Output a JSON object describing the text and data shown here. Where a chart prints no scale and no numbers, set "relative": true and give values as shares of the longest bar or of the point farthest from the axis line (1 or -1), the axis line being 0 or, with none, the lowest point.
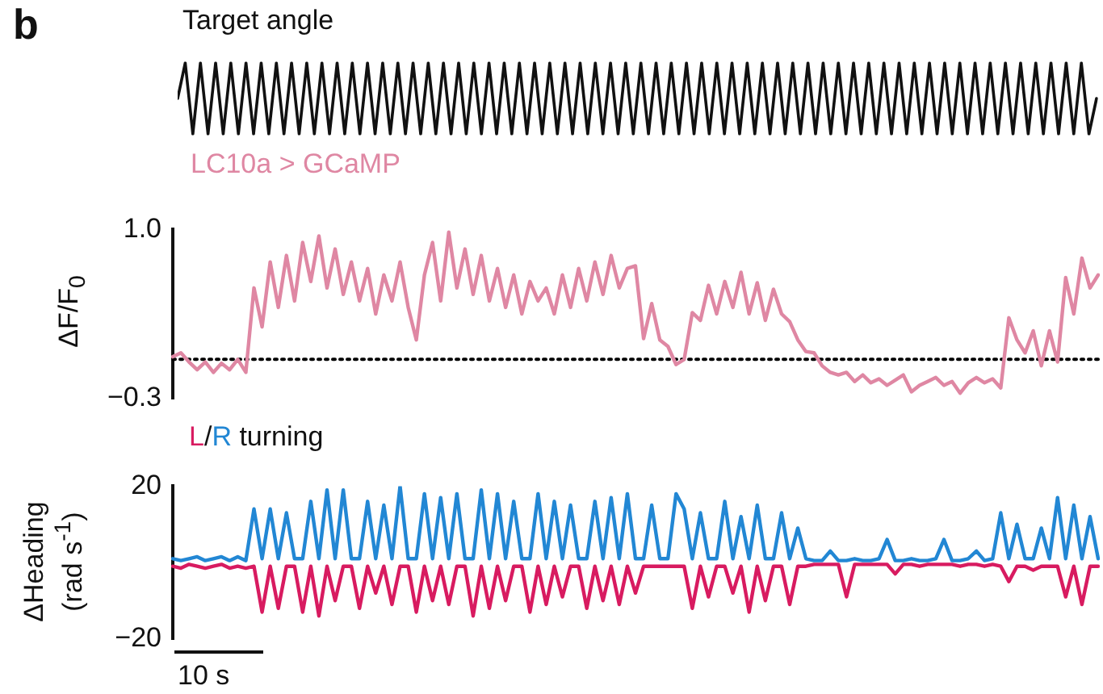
{
  "chart_data": [
    {
      "type": "line",
      "title": "Target angle",
      "annotations": [
        "b"
      ],
      "relative": true,
      "color": "#111111",
      "categories": [
        null,
        null,
        null,
        null,
        null,
        null,
        null,
        null,
        null,
        null,
        null,
        null,
        null,
        null,
        null,
        null,
        null,
        null,
        null,
        null,
        null,
        null,
        null,
        null,
        null,
        null,
        null,
        null,
        null,
        null,
        null,
        null,
        null,
        null,
        null,
        null,
        null,
        null,
        null,
        null,
        null,
        null,
        null,
        null,
        null,
        null,
        null,
        null,
        null,
        null,
        null,
        null,
        null,
        null,
        null,
        null,
        null,
        null,
        null,
        null,
        null,
        null,
        null,
        null,
        null,
        null,
        null,
        null,
        null,
        null,
        null,
        null,
        null,
        null,
        null,
        null,
        null,
        null,
        null,
        null,
        null,
        null,
        null,
        null,
        null,
        null,
        null,
        null,
        null,
        null,
        null,
        null,
        null,
        null,
        null,
        null,
        null,
        null,
        null,
        null,
        null,
        null,
        null,
        null,
        null,
        null,
        null,
        null,
        null,
        null,
        null,
        null,
        null,
        null,
        null,
        null,
        null,
        null,
        null,
        null,
        null,
        null
      ],
      "values": [
        0.5,
        1,
        0,
        1,
        0,
        1,
        0,
        1,
        0,
        1,
        0,
        1,
        0,
        1,
        0,
        1,
        0,
        1,
        0,
        1,
        0,
        1,
        0,
        1,
        0,
        1,
        0,
        1,
        0,
        1,
        0,
        1,
        0,
        1,
        0,
        1,
        0,
        1,
        0,
        1,
        0,
        1,
        0,
        1,
        0,
        1,
        0,
        1,
        0,
        1,
        0,
        1,
        0,
        1,
        0,
        1,
        0,
        1,
        0,
        1,
        0,
        1,
        0,
        1,
        0,
        1,
        0,
        1,
        0,
        1,
        0,
        1,
        0,
        1,
        0,
        1,
        0,
        1,
        0,
        1,
        0,
        1,
        0,
        1,
        0,
        1,
        0,
        1,
        0,
        1,
        0,
        1,
        0,
        1,
        0,
        1,
        0,
        1,
        0,
        1,
        0,
        1,
        0,
        1,
        0,
        1,
        0,
        1,
        0,
        1,
        0,
        1,
        0,
        1,
        0,
        1,
        0,
        1,
        0,
        1,
        0,
        0.5
      ]
    },
    {
      "type": "line",
      "ylabel": "ΔF/F$_{0}$",
      "legend": "top left",
      "ylim": [
        -0.3,
        1.0
      ],
      "yticks": [
        {
          "value": -0.3,
          "label": "−0.3"
        },
        {
          "value": 1.0,
          "label": "1.0"
        }
      ],
      "ref_lines": [
        {
          "axis": "y",
          "value": 0,
          "color": "#000000",
          "line_style": "dotted"
        }
      ],
      "categories": [
        null,
        null,
        null,
        null,
        null,
        null,
        null,
        null,
        null,
        null,
        null,
        null,
        null,
        null,
        null,
        null,
        null,
        null,
        null,
        null,
        null,
        null,
        null,
        null,
        null,
        null,
        null,
        null,
        null,
        null,
        null,
        null,
        null,
        null,
        null,
        null,
        null,
        null,
        null,
        null,
        null,
        null,
        null,
        null,
        null,
        null,
        null,
        null,
        null,
        null,
        null,
        null,
        null,
        null,
        null,
        null,
        null,
        null,
        null,
        null,
        null,
        null,
        null,
        null,
        null,
        null,
        null,
        null,
        null,
        null,
        null,
        null,
        null,
        null,
        null,
        null,
        null,
        null,
        null,
        null,
        null,
        null,
        null,
        null,
        null,
        null,
        null,
        null,
        null,
        null,
        null,
        null,
        null,
        null,
        null,
        null,
        null,
        null,
        null,
        null,
        null,
        null,
        null,
        null,
        null,
        null,
        null,
        null,
        null,
        null,
        null,
        null,
        null,
        null,
        null
      ],
      "series": [
        {
          "name": "LC10a > GCaMP",
          "color": "#df87a3",
          "values": [
            0.02,
            0.05,
            -0.02,
            -0.08,
            -0.02,
            -0.1,
            -0.03,
            -0.08,
            0.0,
            -0.1,
            0.55,
            0.25,
            0.75,
            0.4,
            0.8,
            0.45,
            0.9,
            0.6,
            0.95,
            0.55,
            0.85,
            0.5,
            0.75,
            0.45,
            0.7,
            0.35,
            0.65,
            0.45,
            0.75,
            0.4,
            0.15,
            0.65,
            0.9,
            0.45,
            0.98,
            0.55,
            0.85,
            0.5,
            0.8,
            0.45,
            0.7,
            0.4,
            0.65,
            0.35,
            0.6,
            0.45,
            0.55,
            0.35,
            0.65,
            0.4,
            0.7,
            0.45,
            0.75,
            0.5,
            0.8,
            0.55,
            0.7,
            0.72,
            0.16,
            0.43,
            0.15,
            0.1,
            -0.04,
            0.0,
            0.36,
            0.3,
            0.57,
            0.35,
            0.6,
            0.4,
            0.67,
            0.35,
            0.59,
            0.3,
            0.54,
            0.35,
            0.29,
            0.15,
            0.06,
            0.05,
            -0.05,
            -0.1,
            -0.12,
            -0.1,
            -0.17,
            -0.12,
            -0.18,
            -0.15,
            -0.2,
            -0.16,
            -0.12,
            -0.25,
            -0.2,
            -0.17,
            -0.14,
            -0.2,
            -0.17,
            -0.26,
            -0.18,
            -0.14,
            -0.18,
            -0.15,
            -0.22,
            0.32,
            0.15,
            0.05,
            0.22,
            -0.05,
            0.22,
            -0.02,
            0.63,
            0.35,
            0.78,
            0.55,
            0.65
          ]
        }
      ]
    },
    {
      "type": "line",
      "ylabel": "ΔHeading (rad s$^{-1}$)",
      "legend": "top left",
      "legend_title": "turning",
      "annotations": [
        "/",
        "10 s"
      ],
      "ylim": [
        -20,
        20
      ],
      "yticks": [
        {
          "value": -20,
          "label": "−20"
        },
        20
      ],
      "categories": [
        null,
        null,
        null,
        null,
        null,
        null,
        null,
        null,
        null,
        null,
        null,
        null,
        null,
        null,
        null,
        null,
        null,
        null,
        null,
        null,
        null,
        null,
        null,
        null,
        null,
        null,
        null,
        null,
        null,
        null,
        null,
        null,
        null,
        null,
        null,
        null,
        null,
        null,
        null,
        null,
        null,
        null,
        null,
        null,
        null,
        null,
        null,
        null,
        null,
        null,
        null,
        null,
        null,
        null,
        null,
        null,
        null,
        null,
        null,
        null,
        null,
        null,
        null,
        null,
        null,
        null,
        null,
        null,
        null,
        null,
        null,
        null,
        null,
        null,
        null,
        null,
        null,
        null,
        null,
        null,
        null,
        null,
        null,
        null,
        null,
        null,
        null,
        null,
        null,
        null,
        null,
        null,
        null,
        null,
        null,
        null,
        null,
        null,
        null,
        null,
        null,
        null,
        null,
        null,
        null,
        null,
        null,
        null,
        null,
        null,
        null,
        null,
        null,
        null,
        null
      ],
      "series": [
        {
          "name": "L",
          "color": "#d81b60",
          "values": [
            -1,
            -1.5,
            -0.5,
            -1,
            -1.5,
            -1,
            -0.5,
            -1.5,
            -1,
            -1.5,
            -1,
            -13,
            -1,
            -12,
            -1,
            -1,
            -13,
            -1,
            -14,
            -1,
            -10,
            -1,
            -1,
            -12,
            -1,
            -8,
            -1,
            -11,
            -1,
            -1,
            -13,
            -1,
            -10,
            -1,
            -11,
            -1,
            -1,
            -14,
            -1,
            -12,
            -1,
            -10,
            -1,
            -1,
            -13,
            -1,
            -11,
            -1,
            -9,
            -1,
            -1,
            -12,
            -1,
            -10,
            -1,
            -11,
            -1,
            -8,
            -1,
            -1,
            -1,
            -1,
            -1,
            -1,
            -12,
            -1,
            -9,
            -1,
            -1,
            -8,
            -1,
            -13,
            -1,
            -10,
            -1,
            -1,
            -11,
            -1,
            -1,
            -0.5,
            -0.5,
            -0.5,
            -0.5,
            -9,
            -0.5,
            -0.5,
            -0.5,
            -0.5,
            -0.5,
            -3,
            -0.5,
            -0.5,
            -1,
            -0.5,
            -0.5,
            -0.5,
            -0.5,
            -1,
            -0.5,
            -0.5,
            -1,
            -0.5,
            -1,
            -5,
            -1,
            -1,
            -2,
            -1,
            -1,
            -1,
            -9,
            -1,
            -11,
            -1,
            -1
          ]
        },
        {
          "name": "R",
          "color": "#2287d4",
          "values": [
            1,
            0.5,
            1,
            1.5,
            0.5,
            1,
            1.5,
            0.5,
            1.5,
            0.5,
            14,
            1,
            14,
            1,
            13,
            1,
            1,
            16,
            1,
            19,
            1,
            19,
            1,
            1,
            16,
            1,
            15,
            1,
            20,
            1,
            1,
            18,
            1,
            17,
            1,
            18,
            1,
            1,
            19,
            1,
            18,
            1,
            16,
            1,
            1,
            18,
            1,
            16,
            1,
            15,
            1,
            1,
            16,
            1,
            17,
            1,
            18,
            1,
            1,
            15,
            1,
            1,
            18,
            14,
            1,
            13,
            1,
            1,
            16,
            1,
            12,
            1,
            15,
            1,
            1,
            13,
            1,
            9,
            1,
            0.5,
            0.5,
            3,
            0.5,
            0.5,
            1,
            0.5,
            0.5,
            1,
            6,
            0.5,
            0.5,
            1,
            0.5,
            0.5,
            1,
            6,
            0.5,
            0.5,
            1,
            3,
            0.5,
            1,
            13,
            1,
            10,
            1,
            1,
            9,
            1,
            17,
            1,
            15,
            1,
            12,
            1
          ]
        }
      ]
    }
  ]
}
